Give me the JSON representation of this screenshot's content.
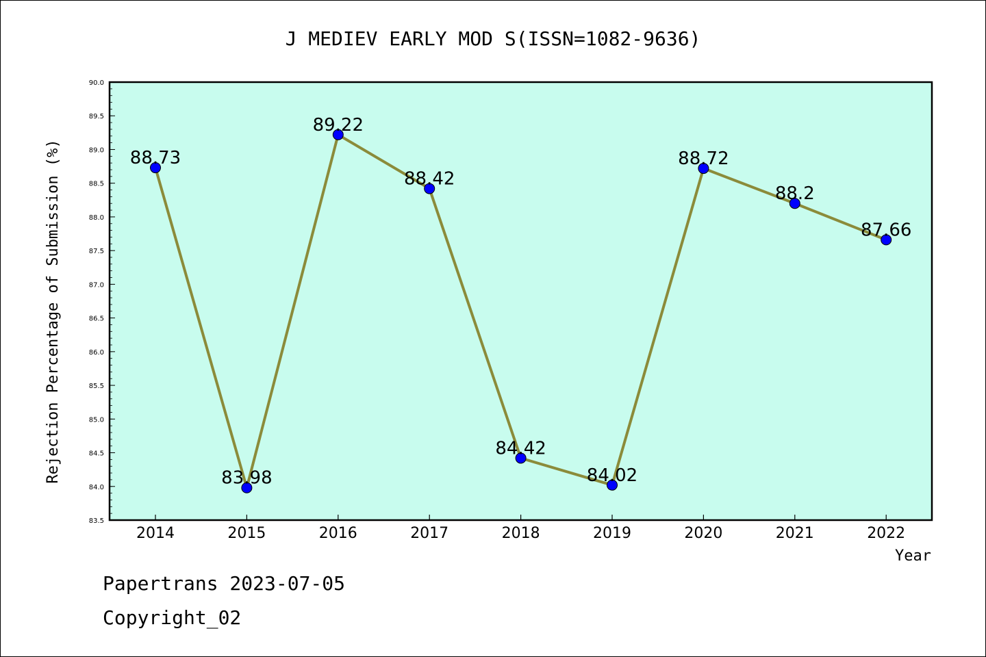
{
  "chart_data": {
    "type": "line",
    "title": "J MEDIEV EARLY MOD S(ISSN=1082-9636)",
    "xlabel": "Year",
    "ylabel": "Rejection Percentage of Submission (%)",
    "categories": [
      "2014",
      "2015",
      "2016",
      "2017",
      "2018",
      "2019",
      "2020",
      "2021",
      "2022"
    ],
    "series": [
      {
        "values": [
          88.73,
          83.98,
          89.22,
          88.42,
          84.42,
          84.02,
          88.72,
          88.2,
          87.66
        ],
        "data_labels": [
          "88.73",
          "83.98",
          "89.22",
          "88.42",
          "84.42",
          "84.02",
          "88.72",
          "88.2",
          "87.66"
        ],
        "line_color": "#8b8b3a",
        "marker_color": "#0000ff"
      }
    ],
    "ylim": [
      83.5,
      90.0
    ],
    "yticks": [
      "83.5",
      "84.0",
      "84.5",
      "85.0",
      "85.5",
      "86.0",
      "86.5",
      "87.0",
      "87.5",
      "88.0",
      "88.5",
      "89.0",
      "89.5",
      "90.0"
    ],
    "plot_background": "#c8fcee",
    "grid": false,
    "legend": "none"
  },
  "footer": {
    "line1": "Papertrans 2023-07-05",
    "line2": "Copyright_02"
  }
}
